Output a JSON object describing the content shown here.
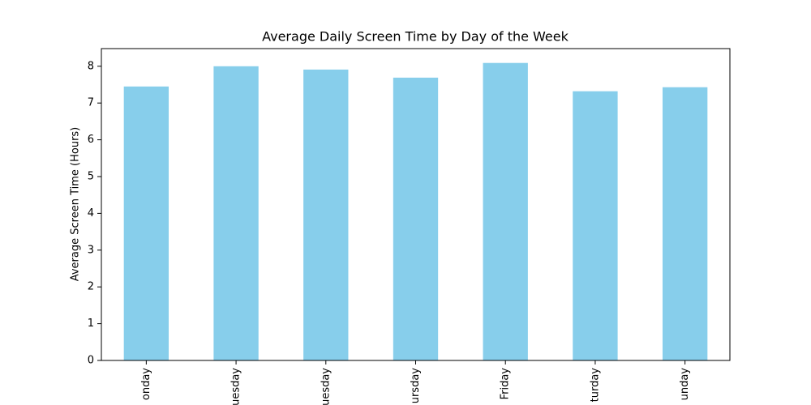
{
  "chart_data": {
    "type": "bar",
    "title": "Average Daily Screen Time by Day of the Week",
    "y_label": "Average Screen Time (Hours)",
    "categories": [
      "onday",
      "uesday",
      "uesday",
      "ursday",
      "Friday",
      "turday",
      "unday"
    ],
    "values": [
      7.45,
      8.0,
      7.91,
      7.69,
      8.09,
      7.32,
      7.43
    ],
    "color": "#87ceeb",
    "ylim": [
      0,
      8.48
    ],
    "yticks": [
      0,
      1,
      2,
      3,
      4,
      5,
      6,
      7,
      8
    ],
    "grid": false
  }
}
